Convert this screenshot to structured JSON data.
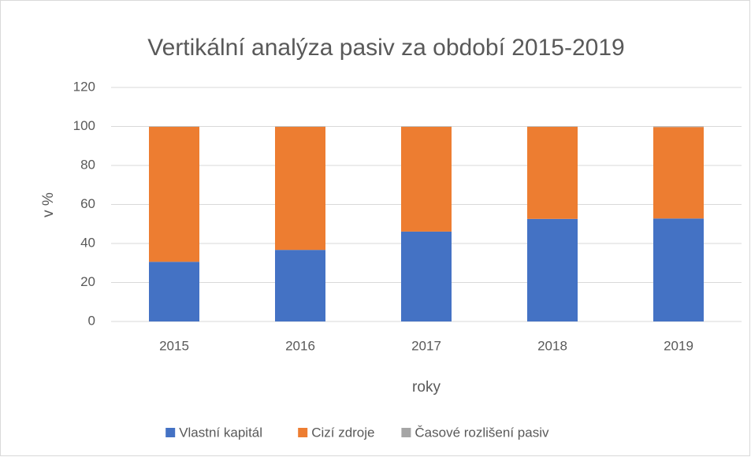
{
  "chart_data": {
    "type": "stacked_bar",
    "title": "Vertikální analýza pasiv za období 2015-2019",
    "x_label": "roky",
    "y_label": "v %",
    "categories": [
      "2015",
      "2016",
      "2017",
      "2018",
      "2019"
    ],
    "series": [
      {
        "name": "Vlastní kapitál",
        "color": "#4472c4",
        "values": [
          30.6,
          36.7,
          46.1,
          52.6,
          52.8
        ]
      },
      {
        "name": "Cizí zdroje",
        "color": "#ed7d31",
        "values": [
          69.2,
          63.1,
          53.7,
          47.2,
          46.9
        ]
      },
      {
        "name": "Časové rozlišení pasiv",
        "color": "#a5a5a5",
        "values": [
          0.2,
          0.2,
          0.2,
          0.2,
          0.3
        ]
      }
    ],
    "ylim": [
      0,
      120
    ],
    "yticks": [
      0,
      20,
      40,
      60,
      80,
      100,
      120
    ],
    "grid": true,
    "legend": "bottom"
  }
}
